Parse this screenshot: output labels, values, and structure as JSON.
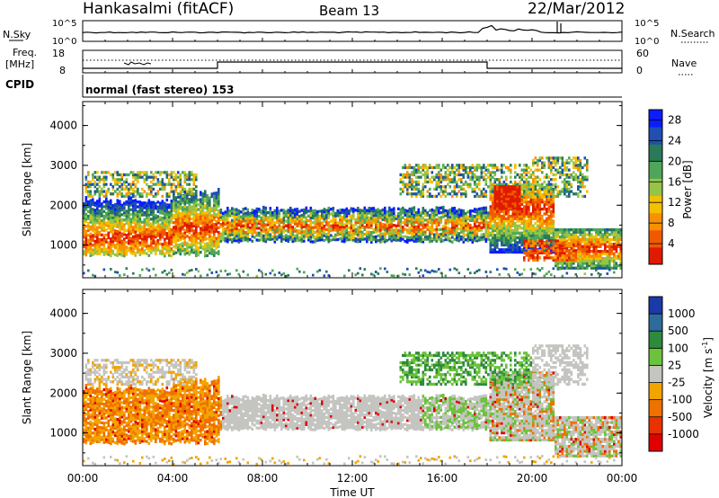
{
  "header": {
    "station": "Hankasalmi (fitACF)",
    "beam": "Beam 13",
    "date": "22/Mar/2012"
  },
  "noise_panel": {
    "left_label": "N.Sky",
    "left_top": "10^5",
    "left_bottom": "10^0",
    "right_top": "10^5",
    "right_bottom": "10^0",
    "right_label": "N.Search"
  },
  "freq_panel": {
    "label_line1": "Freq.",
    "label_line2": "[MHz]",
    "left_top": "18",
    "left_bottom": "8",
    "right_top": "60",
    "right_bottom": "0",
    "right_label": "Nave"
  },
  "cpid": {
    "label": "CPID",
    "value": "normal (fast stereo) 153"
  },
  "chart_data": [
    {
      "type": "heatmap",
      "title": "",
      "xlabel": "",
      "ylabel": "Slant Range [km]",
      "x_ticks": [
        "00:00",
        "04:00",
        "08:00",
        "12:00",
        "16:00",
        "20:00",
        "00:00"
      ],
      "y_ticks": [
        "1000",
        "2000",
        "3000",
        "4000"
      ],
      "xlim": [
        0,
        24
      ],
      "ylim": [
        180,
        4600
      ],
      "colorbar": {
        "label": "Power [dB]",
        "ticks": [
          "4",
          "8",
          "12",
          "16",
          "20",
          "24",
          "28"
        ],
        "range": [
          0,
          30
        ],
        "colors": [
          "#0a1dff",
          "#1f4fb0",
          "#2a7a5a",
          "#4fa65a",
          "#95c548",
          "#f4c000",
          "#f89000",
          "#ef5a00",
          "#e01a00"
        ]
      }
    },
    {
      "type": "heatmap",
      "title": "",
      "xlabel": "Time UT",
      "ylabel": "Slant Range [km]",
      "x_ticks": [
        "00:00",
        "04:00",
        "08:00",
        "12:00",
        "16:00",
        "20:00",
        "00:00"
      ],
      "y_ticks": [
        "1000",
        "2000",
        "3000",
        "4000"
      ],
      "xlim": [
        0,
        24
      ],
      "ylim": [
        180,
        4600
      ],
      "colorbar": {
        "label": "Velocity [m s^-1]",
        "ticks": [
          "1000",
          "500",
          "100",
          "25",
          "-25",
          "-100",
          "-500",
          "-1000"
        ],
        "colors": [
          "#1a3aa8",
          "#2e6b9a",
          "#2e8a3e",
          "#6cc23c",
          "#c4c4c0",
          "#f2a400",
          "#f07000",
          "#e83200",
          "#e00000"
        ]
      }
    }
  ]
}
